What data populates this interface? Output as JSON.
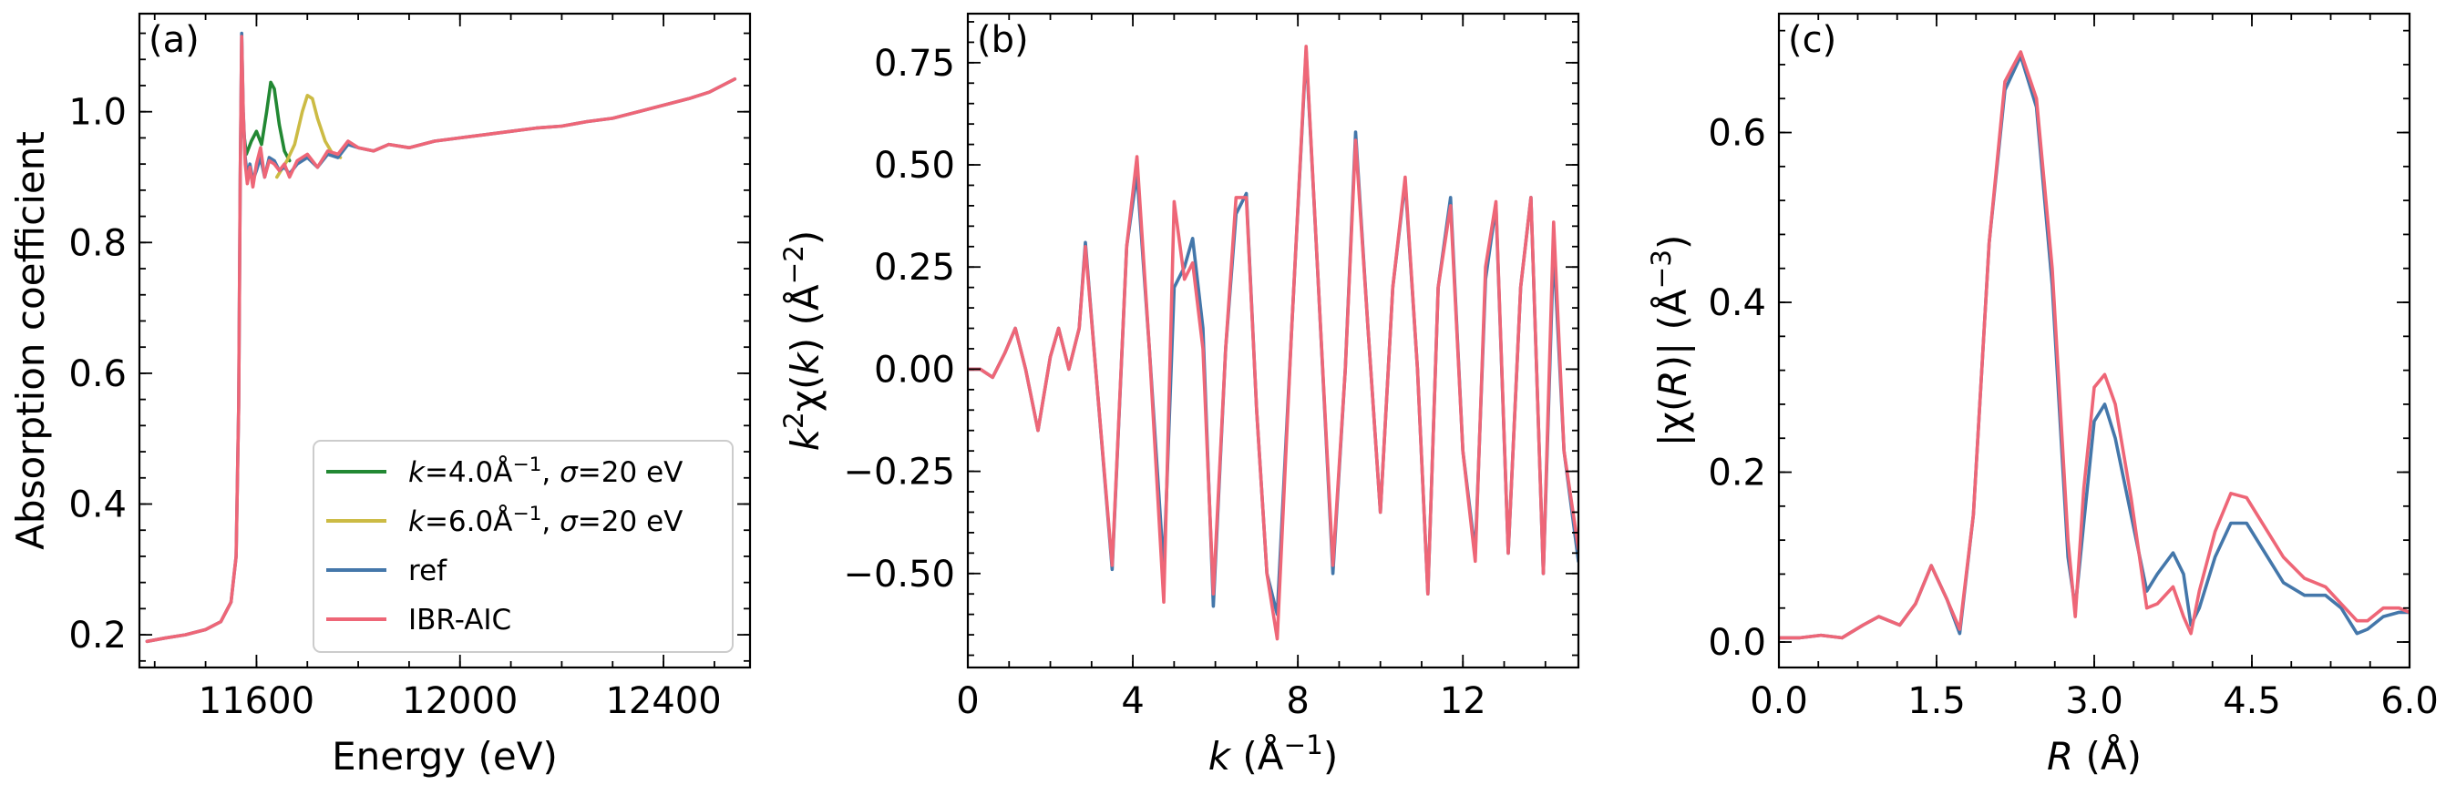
{
  "chart_data": [
    {
      "type": "line",
      "panel_label": "(a)",
      "xlabel": "Energy (eV)",
      "ylabel": "Absorption coefficient",
      "xlim": [
        11370,
        12570
      ],
      "ylim": [
        0.15,
        1.15
      ],
      "x_ticks": [
        11600,
        12000,
        12400
      ],
      "x_ticklabels": [
        "11600",
        "12000",
        "12400"
      ],
      "y_ticks": [
        0.2,
        0.4,
        0.6,
        0.8,
        1.0
      ],
      "y_ticklabels": [
        "0.2",
        "0.4",
        "0.6",
        "0.8",
        "1.0"
      ],
      "legend_position": "lower-right",
      "series": [
        {
          "name": "k=4.0Å⁻¹, σ=20 eV",
          "color": "#228833",
          "x": [
            11570,
            11580,
            11590,
            11600,
            11610,
            11620,
            11628,
            11635,
            11645,
            11655,
            11665
          ],
          "y": [
            1.0,
            0.935,
            0.955,
            0.97,
            0.95,
            1.0,
            1.045,
            1.035,
            0.98,
            0.94,
            0.925
          ]
        },
        {
          "name": "k=6.0Å⁻¹, σ=20 eV",
          "color": "#CCBB44",
          "x": [
            11640,
            11660,
            11675,
            11690,
            11700,
            11710,
            11720,
            11735,
            11750,
            11765
          ],
          "y": [
            0.9,
            0.925,
            0.95,
            1.0,
            1.025,
            1.02,
            0.99,
            0.955,
            0.935,
            0.93
          ]
        },
        {
          "name": "ref",
          "color": "#4477AA",
          "x": [
            11385,
            11420,
            11460,
            11500,
            11530,
            11550,
            11560,
            11565,
            11568,
            11571,
            11574,
            11578,
            11582,
            11587,
            11593,
            11600,
            11608,
            11616,
            11625,
            11635,
            11645,
            11655,
            11665,
            11680,
            11700,
            11720,
            11740,
            11760,
            11780,
            11800,
            11830,
            11860,
            11900,
            11950,
            12000,
            12050,
            12100,
            12150,
            12200,
            12250,
            12300,
            12350,
            12400,
            12450,
            12490,
            12540
          ],
          "y": [
            0.19,
            0.195,
            0.2,
            0.208,
            0.22,
            0.25,
            0.32,
            0.55,
            0.9,
            1.12,
            1.0,
            0.93,
            0.9,
            0.92,
            0.895,
            0.91,
            0.93,
            0.9,
            0.93,
            0.925,
            0.91,
            0.915,
            0.905,
            0.92,
            0.93,
            0.915,
            0.935,
            0.93,
            0.95,
            0.945,
            0.94,
            0.95,
            0.945,
            0.955,
            0.96,
            0.965,
            0.97,
            0.975,
            0.978,
            0.985,
            0.99,
            1.0,
            1.01,
            1.02,
            1.03,
            1.05
          ]
        },
        {
          "name": "IBR-AIC",
          "color": "#EE6677",
          "x": [
            11385,
            11420,
            11460,
            11500,
            11530,
            11550,
            11560,
            11565,
            11568,
            11571,
            11574,
            11578,
            11582,
            11587,
            11593,
            11600,
            11608,
            11616,
            11625,
            11635,
            11645,
            11655,
            11665,
            11680,
            11700,
            11720,
            11740,
            11760,
            11780,
            11800,
            11830,
            11860,
            11900,
            11950,
            12000,
            12050,
            12100,
            12150,
            12200,
            12250,
            12300,
            12350,
            12400,
            12450,
            12490,
            12540
          ],
          "y": [
            0.19,
            0.195,
            0.2,
            0.208,
            0.22,
            0.25,
            0.32,
            0.55,
            0.9,
            1.115,
            1.0,
            0.92,
            0.89,
            0.915,
            0.885,
            0.92,
            0.945,
            0.9,
            0.925,
            0.92,
            0.91,
            0.92,
            0.9,
            0.925,
            0.935,
            0.915,
            0.94,
            0.935,
            0.955,
            0.945,
            0.94,
            0.95,
            0.945,
            0.955,
            0.96,
            0.965,
            0.97,
            0.975,
            0.978,
            0.985,
            0.99,
            1.0,
            1.01,
            1.02,
            1.03,
            1.05
          ]
        }
      ]
    },
    {
      "type": "line",
      "panel_label": "(b)",
      "xlabel": "k (Å⁻¹)",
      "ylabel": "k²χ(k) (Å⁻²)",
      "xlim": [
        0,
        14.8
      ],
      "ylim": [
        -0.73,
        0.87
      ],
      "x_ticks": [
        0,
        4,
        8,
        12
      ],
      "x_ticklabels": [
        "0",
        "4",
        "8",
        "12"
      ],
      "y_ticks": [
        -0.5,
        -0.25,
        0.0,
        0.25,
        0.5,
        0.75
      ],
      "y_ticklabels": [
        "−0.50",
        "−0.25",
        "0.00",
        "0.25",
        "0.50",
        "0.75"
      ],
      "series": [
        {
          "name": "ref",
          "color": "#4477AA",
          "x": [
            0,
            0.3,
            0.6,
            0.9,
            1.15,
            1.4,
            1.7,
            2.0,
            2.2,
            2.45,
            2.7,
            2.85,
            3.1,
            3.5,
            3.85,
            4.1,
            4.4,
            4.75,
            5.0,
            5.25,
            5.45,
            5.7,
            5.95,
            6.25,
            6.5,
            6.75,
            7.0,
            7.25,
            7.5,
            7.85,
            8.2,
            8.5,
            8.85,
            9.15,
            9.4,
            9.7,
            10.0,
            10.3,
            10.6,
            10.9,
            11.15,
            11.4,
            11.7,
            12.0,
            12.3,
            12.55,
            12.8,
            13.1,
            13.4,
            13.65,
            13.95,
            14.2,
            14.45,
            14.8
          ],
          "y": [
            0.0,
            0.0,
            -0.02,
            0.04,
            0.1,
            0.0,
            -0.15,
            0.03,
            0.1,
            0.0,
            0.1,
            0.31,
            0.0,
            -0.49,
            0.3,
            0.48,
            0.05,
            -0.49,
            0.2,
            0.25,
            0.32,
            0.1,
            -0.58,
            0.05,
            0.38,
            0.43,
            -0.1,
            -0.5,
            -0.6,
            0.1,
            0.78,
            0.2,
            -0.5,
            0.0,
            0.58,
            0.1,
            -0.35,
            0.2,
            0.46,
            0.0,
            -0.55,
            0.2,
            0.42,
            -0.2,
            -0.45,
            0.22,
            0.4,
            -0.45,
            0.2,
            0.42,
            -0.5,
            0.3,
            -0.2,
            -0.47
          ]
        },
        {
          "name": "IBR-AIC",
          "color": "#EE6677",
          "x": [
            0,
            0.3,
            0.6,
            0.9,
            1.15,
            1.4,
            1.7,
            2.0,
            2.2,
            2.45,
            2.7,
            2.85,
            3.1,
            3.5,
            3.85,
            4.1,
            4.4,
            4.75,
            5.0,
            5.25,
            5.45,
            5.7,
            5.95,
            6.25,
            6.5,
            6.75,
            7.0,
            7.25,
            7.5,
            7.85,
            8.2,
            8.5,
            8.85,
            9.15,
            9.4,
            9.7,
            10.0,
            10.3,
            10.6,
            10.9,
            11.15,
            11.4,
            11.7,
            12.0,
            12.3,
            12.55,
            12.8,
            13.1,
            13.4,
            13.65,
            13.95,
            14.2,
            14.45,
            14.8
          ],
          "y": [
            0.0,
            0.0,
            -0.02,
            0.04,
            0.1,
            0.0,
            -0.15,
            0.03,
            0.1,
            0.0,
            0.1,
            0.3,
            0.0,
            -0.48,
            0.3,
            0.52,
            0.05,
            -0.57,
            0.41,
            0.22,
            0.26,
            0.05,
            -0.55,
            0.05,
            0.42,
            0.42,
            -0.1,
            -0.5,
            -0.66,
            0.1,
            0.79,
            0.2,
            -0.48,
            0.0,
            0.56,
            0.1,
            -0.35,
            0.2,
            0.47,
            0.0,
            -0.55,
            0.2,
            0.4,
            -0.2,
            -0.47,
            0.25,
            0.41,
            -0.45,
            0.2,
            0.42,
            -0.5,
            0.36,
            -0.2,
            -0.44
          ]
        }
      ]
    },
    {
      "type": "line",
      "panel_label": "(c)",
      "xlabel": "R (Å)",
      "ylabel": "|χ(R)| (Å⁻³)",
      "xlim": [
        0,
        6.0
      ],
      "ylim": [
        -0.03,
        0.74
      ],
      "x_ticks": [
        0,
        1.5,
        3.0,
        4.5,
        6.0
      ],
      "x_ticklabels": [
        "0.0",
        "1.5",
        "3.0",
        "4.5",
        "6.0"
      ],
      "y_ticks": [
        0.0,
        0.2,
        0.4,
        0.6
      ],
      "y_ticklabels": [
        "0.0",
        "0.2",
        "0.4",
        "0.6"
      ],
      "series": [
        {
          "name": "ref",
          "color": "#4477AA",
          "x": [
            0,
            0.2,
            0.4,
            0.6,
            0.8,
            0.95,
            1.15,
            1.3,
            1.45,
            1.6,
            1.72,
            1.85,
            2.0,
            2.15,
            2.3,
            2.45,
            2.6,
            2.75,
            2.82,
            2.9,
            3.0,
            3.1,
            3.2,
            3.35,
            3.5,
            3.6,
            3.75,
            3.85,
            3.92,
            4.0,
            4.15,
            4.3,
            4.45,
            4.6,
            4.8,
            5.0,
            5.2,
            5.35,
            5.5,
            5.6,
            5.75,
            5.9,
            6.0
          ],
          "y": [
            0.005,
            0.005,
            0.008,
            0.005,
            0.02,
            0.03,
            0.02,
            0.045,
            0.09,
            0.05,
            0.01,
            0.15,
            0.47,
            0.65,
            0.69,
            0.63,
            0.42,
            0.1,
            0.04,
            0.14,
            0.26,
            0.28,
            0.24,
            0.15,
            0.06,
            0.08,
            0.105,
            0.08,
            0.02,
            0.04,
            0.1,
            0.14,
            0.14,
            0.11,
            0.07,
            0.055,
            0.055,
            0.04,
            0.01,
            0.015,
            0.03,
            0.035,
            0.035
          ]
        },
        {
          "name": "IBR-AIC",
          "color": "#EE6677",
          "x": [
            0,
            0.2,
            0.4,
            0.6,
            0.8,
            0.95,
            1.15,
            1.3,
            1.45,
            1.6,
            1.72,
            1.85,
            2.0,
            2.15,
            2.3,
            2.45,
            2.6,
            2.75,
            2.82,
            2.9,
            3.0,
            3.1,
            3.2,
            3.35,
            3.5,
            3.6,
            3.75,
            3.85,
            3.92,
            4.0,
            4.15,
            4.3,
            4.45,
            4.6,
            4.8,
            5.0,
            5.2,
            5.35,
            5.5,
            5.6,
            5.75,
            5.9,
            6.0
          ],
          "y": [
            0.005,
            0.005,
            0.008,
            0.005,
            0.02,
            0.03,
            0.02,
            0.045,
            0.09,
            0.05,
            0.015,
            0.15,
            0.47,
            0.66,
            0.695,
            0.64,
            0.44,
            0.12,
            0.03,
            0.18,
            0.3,
            0.315,
            0.28,
            0.17,
            0.04,
            0.045,
            0.065,
            0.03,
            0.01,
            0.06,
            0.13,
            0.175,
            0.17,
            0.14,
            0.1,
            0.075,
            0.065,
            0.045,
            0.025,
            0.025,
            0.04,
            0.04,
            0.035
          ]
        }
      ]
    }
  ],
  "legend": {
    "entries": [
      {
        "label": "k=4.0Å⁻¹, σ=20 eV",
        "color": "#228833"
      },
      {
        "label": "k=6.0Å⁻¹, σ=20 eV",
        "color": "#CCBB44"
      },
      {
        "label": "ref",
        "color": "#4477AA"
      },
      {
        "label": "IBR-AIC",
        "color": "#EE6677"
      }
    ]
  }
}
